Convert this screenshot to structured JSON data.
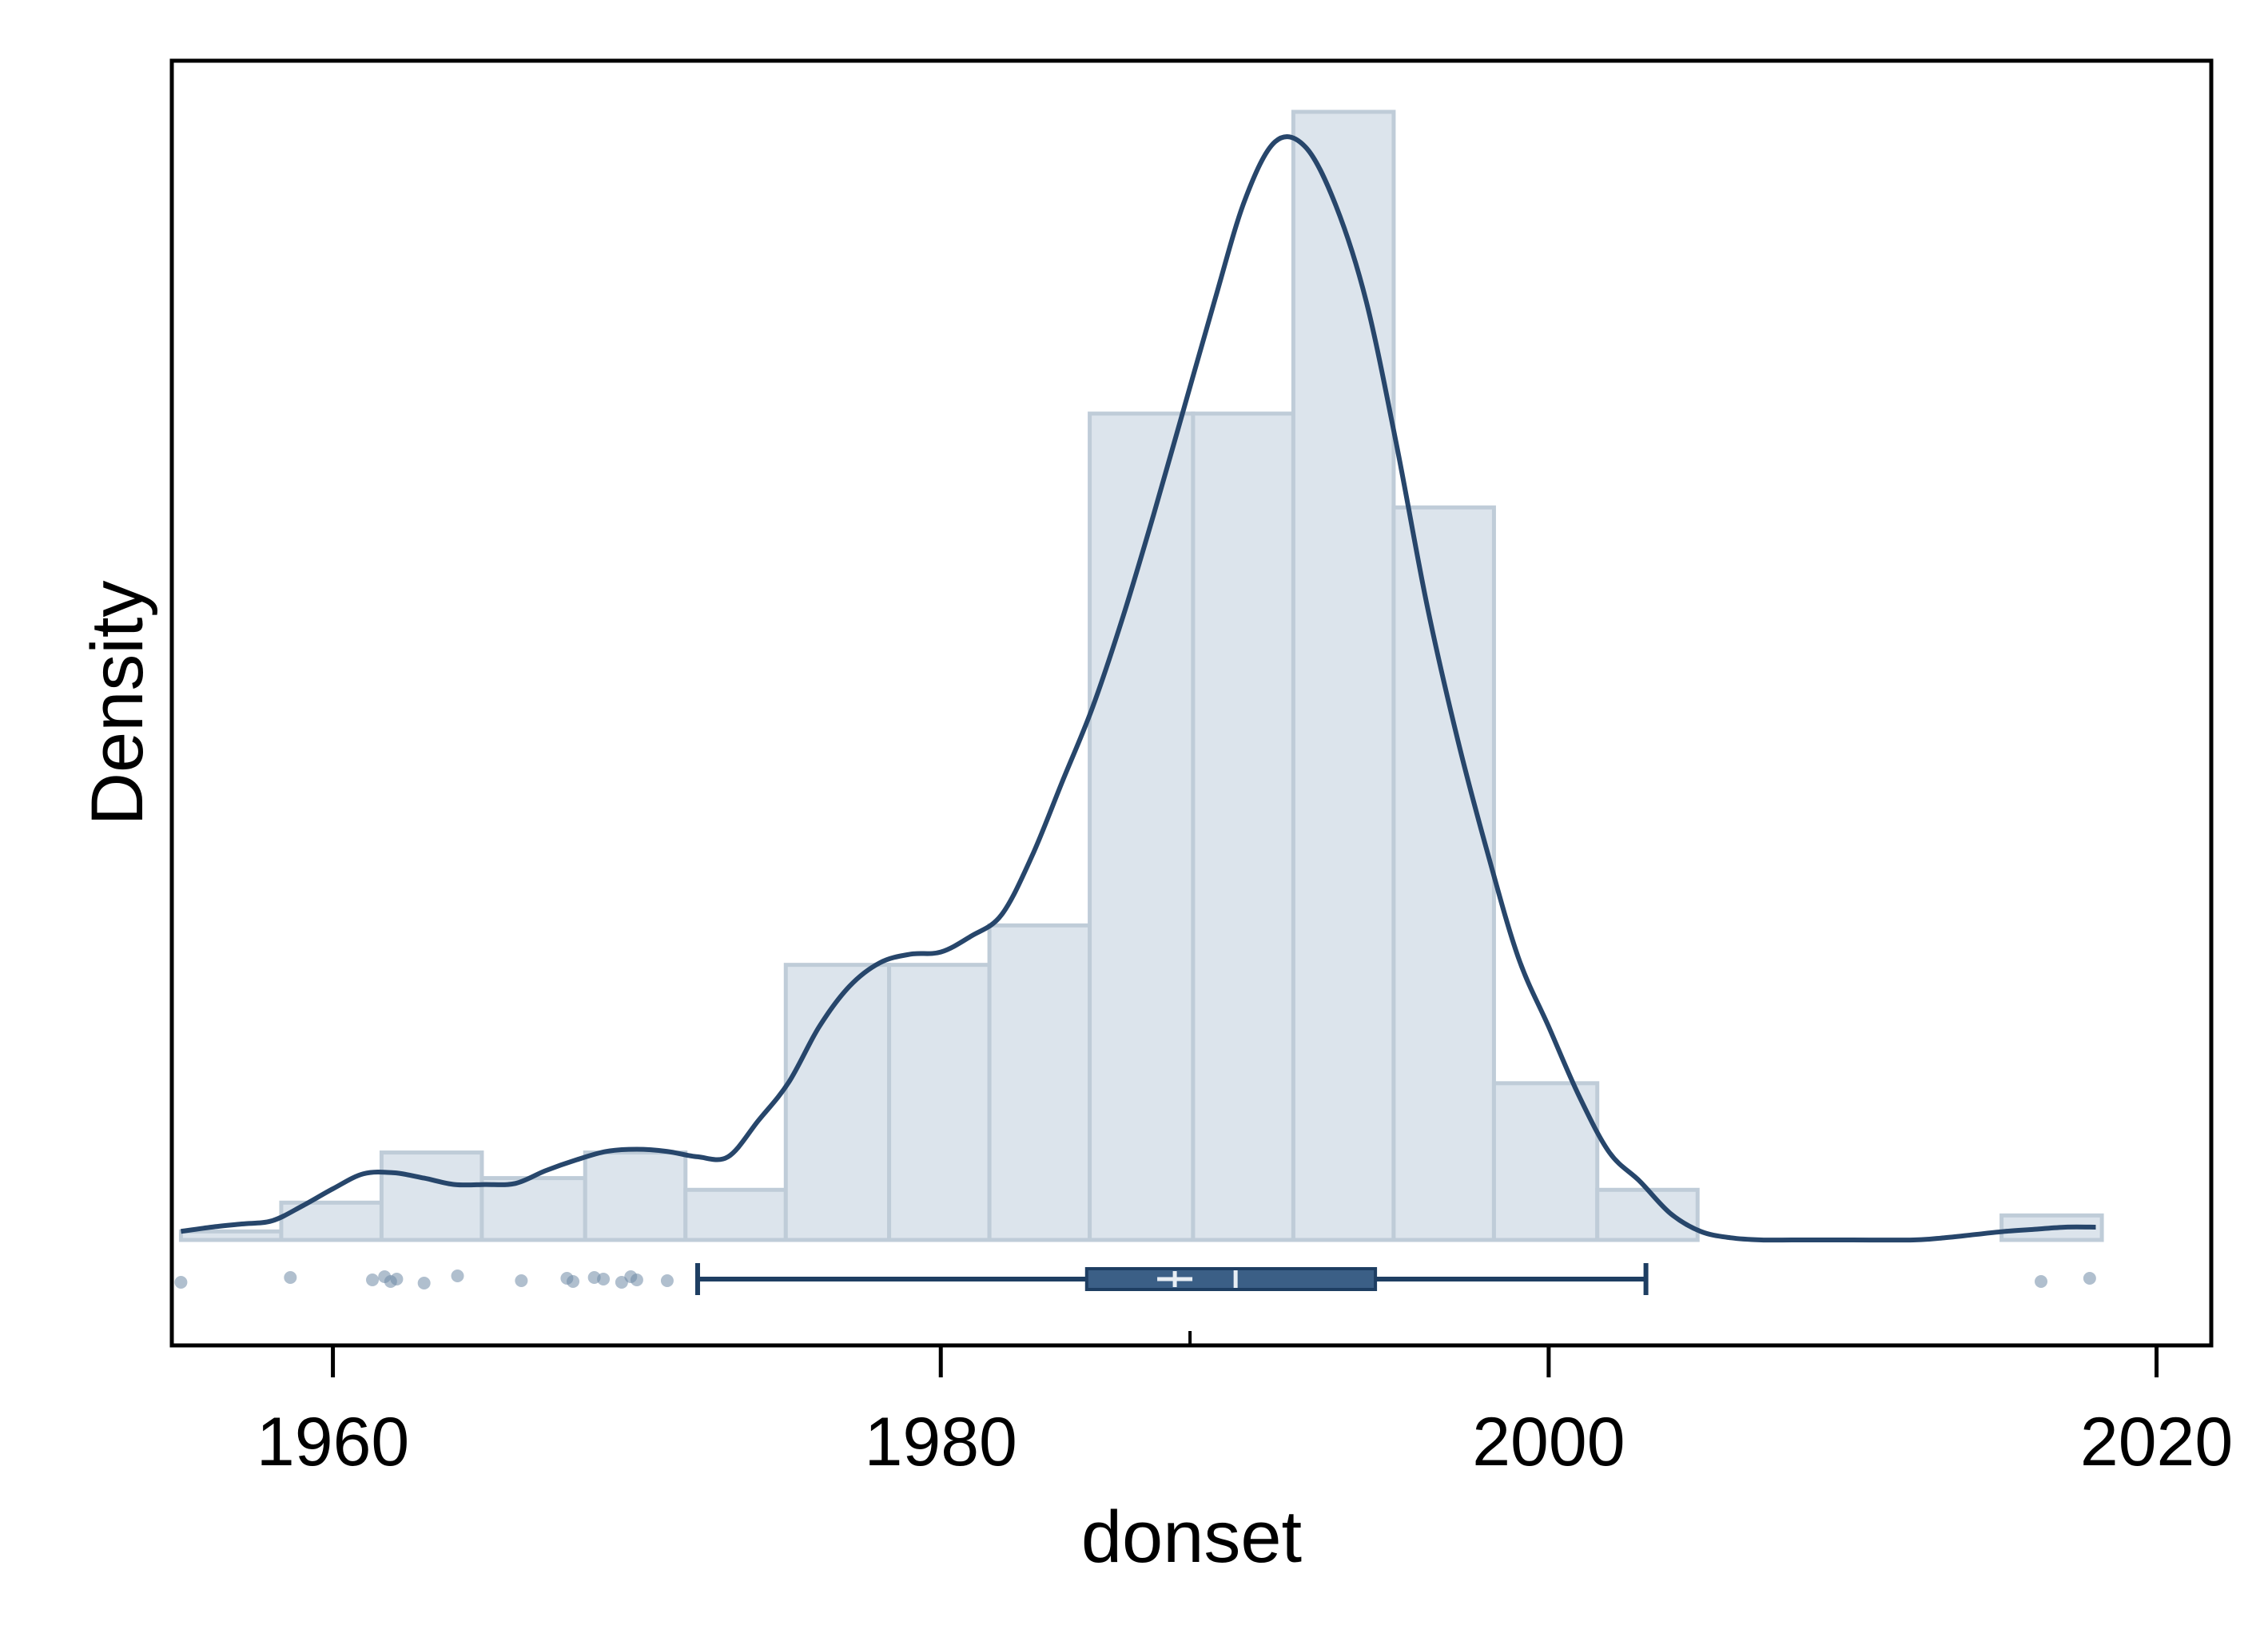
{
  "chart_data": {
    "type": "histogram",
    "xlabel": "donset",
    "ylabel": "Density",
    "xlim": [
      1954.7,
      2021.8
    ],
    "x_ticks": [
      1960,
      1980,
      2000,
      2020
    ],
    "x_tick_labels": [
      "1960",
      "1980",
      "2000",
      "2020"
    ],
    "y_ticks_shown": false,
    "grid": false,
    "histogram": {
      "bin_width": 3.33,
      "bins": [
        {
          "x0": 1955.0,
          "x1": 1958.3,
          "density": 0.0008
        },
        {
          "x0": 1958.3,
          "x1": 1961.6,
          "density": 0.0035
        },
        {
          "x0": 1961.6,
          "x1": 1964.9,
          "density": 0.0082
        },
        {
          "x0": 1964.9,
          "x1": 1968.3,
          "density": 0.0058
        },
        {
          "x0": 1968.3,
          "x1": 1971.6,
          "density": 0.0082
        },
        {
          "x0": 1971.6,
          "x1": 1974.9,
          "density": 0.0047
        },
        {
          "x0": 1974.9,
          "x1": 1978.3,
          "density": 0.0258
        },
        {
          "x0": 1978.3,
          "x1": 1981.6,
          "density": 0.0258
        },
        {
          "x0": 1981.6,
          "x1": 1984.9,
          "density": 0.0295
        },
        {
          "x0": 1984.9,
          "x1": 1988.3,
          "density": 0.0775
        },
        {
          "x0": 1988.3,
          "x1": 1991.6,
          "density": 0.0775
        },
        {
          "x0": 1991.6,
          "x1": 1994.9,
          "density": 0.1058
        },
        {
          "x0": 1994.9,
          "x1": 1998.2,
          "density": 0.0687
        },
        {
          "x0": 1998.2,
          "x1": 2001.6,
          "density": 0.0147
        },
        {
          "x0": 2001.6,
          "x1": 2004.9,
          "density": 0.0047
        },
        {
          "x0": 2004.9,
          "x1": 2008.2,
          "density": 0
        },
        {
          "x0": 2008.2,
          "x1": 2011.6,
          "density": 0
        },
        {
          "x0": 2011.6,
          "x1": 2014.9,
          "density": 0
        },
        {
          "x0": 2014.9,
          "x1": 2018.2,
          "density": 0.0023
        }
      ]
    },
    "kde": {
      "x": [
        1955.0,
        1956.0,
        1957.0,
        1958.0,
        1959.0,
        1960.0,
        1961.0,
        1962.0,
        1963.0,
        1964.0,
        1965.0,
        1966.0,
        1967.0,
        1968.0,
        1969.0,
        1970.0,
        1971.0,
        1972.0,
        1973.0,
        1974.0,
        1975.0,
        1976.0,
        1977.0,
        1978.0,
        1979.0,
        1980.0,
        1981.0,
        1982.0,
        1983.0,
        1984.0,
        1985.0,
        1986.0,
        1987.0,
        1988.0,
        1989.0,
        1990.0,
        1991.0,
        1992.0,
        1993.0,
        1994.0,
        1995.0,
        1996.0,
        1997.0,
        1998.0,
        1999.0,
        2000.0,
        2001.0,
        2002.0,
        2003.0,
        2004.0,
        2005.0,
        2006.0,
        2007.0,
        2008.0,
        2010.0,
        2012.0,
        2013.0,
        2014.0,
        2015.0,
        2016.0,
        2017.0,
        2018.0
      ],
      "density": [
        0.0008,
        0.0012,
        0.0015,
        0.0018,
        0.0032,
        0.0048,
        0.0062,
        0.0063,
        0.0058,
        0.0052,
        0.0052,
        0.0053,
        0.0065,
        0.0075,
        0.0083,
        0.0085,
        0.0083,
        0.0078,
        0.0078,
        0.0112,
        0.0148,
        0.02,
        0.0238,
        0.026,
        0.0268,
        0.027,
        0.0285,
        0.0305,
        0.036,
        0.043,
        0.05,
        0.0585,
        0.068,
        0.078,
        0.088,
        0.0975,
        0.103,
        0.1025,
        0.097,
        0.088,
        0.0745,
        0.0595,
        0.047,
        0.0362,
        0.0265,
        0.02,
        0.0135,
        0.0082,
        0.0055,
        0.0025,
        0.0008,
        0.0002,
        0,
        0,
        0,
        0,
        0.0002,
        0.0005,
        0.0008,
        0.001,
        0.0012,
        0.0012
      ]
    },
    "ylim": [
      0,
      1.08
    ],
    "boxplot": {
      "q1": 1984.8,
      "median": 1989.7,
      "q3": 1994.3,
      "mean": 1987.7,
      "whisker_low": 1972.0,
      "whisker_high": 2003.2,
      "outliers": [
        1955.0,
        1958.6,
        1961.3,
        1961.7,
        1961.9,
        1962.1,
        1963.0,
        1964.1,
        1966.2,
        1967.7,
        1967.9,
        1968.6,
        1968.9,
        1969.5,
        1969.8,
        1970.0,
        1971.0,
        2016.2,
        2017.8
      ]
    },
    "colors": {
      "bar_fill": "#dce4ec",
      "bar_edge": "#bfccd8",
      "kde_line": "#27466b",
      "box_fill": "#3b5f86",
      "box_line": "#1e3e62",
      "point": "#6f8aa6"
    }
  }
}
